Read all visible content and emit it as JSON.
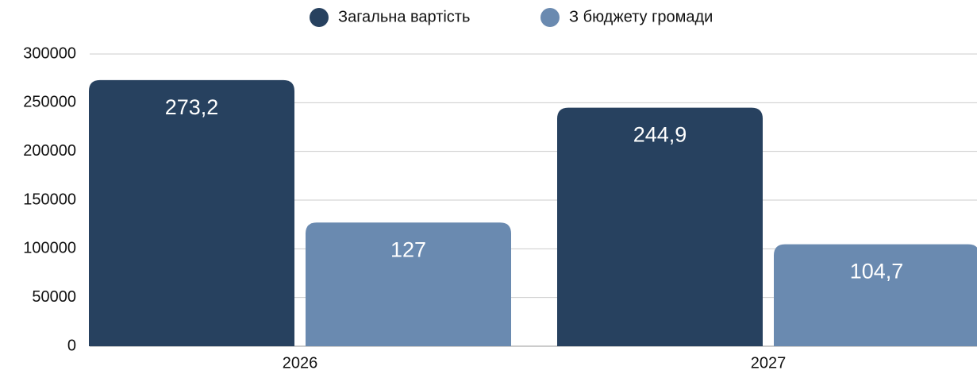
{
  "chart_data": {
    "type": "bar",
    "categories": [
      "2026",
      "2027"
    ],
    "series": [
      {
        "name": "Загальна вартість",
        "color": "#27415f",
        "values": [
          273200,
          244900
        ],
        "value_labels": [
          "273,2",
          "244,9"
        ]
      },
      {
        "name": "З бюджету громади",
        "color": "#6a8ab0",
        "values": [
          127000,
          104700
        ],
        "value_labels": [
          "127",
          "104,7"
        ]
      }
    ],
    "ylim": [
      0,
      300000
    ],
    "yticks": [
      0,
      50000,
      100000,
      150000,
      200000,
      250000,
      300000
    ],
    "grid": true,
    "legend": "top"
  }
}
